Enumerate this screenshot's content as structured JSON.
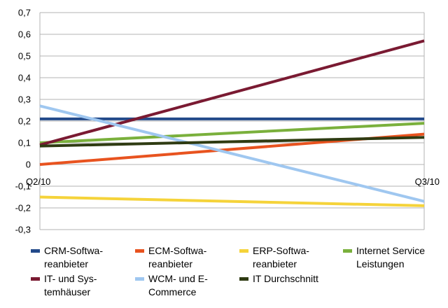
{
  "chart_data": {
    "type": "line",
    "categories": [
      "Q2/10",
      "Q3/10"
    ],
    "y_ticks": [
      "0,7",
      "0,6",
      "0,5",
      "0,4",
      "0,3",
      "0,2",
      "0,1",
      "0",
      "-0,1",
      "-0,2",
      "-0,3"
    ],
    "ylim": [
      -0.3,
      0.7
    ],
    "grid": true,
    "legend_position": "bottom",
    "series": [
      {
        "name_lines": [
          "CRM-Softwa-",
          "reanbieter"
        ],
        "color": "#234a8a",
        "values": [
          0.21,
          0.21
        ]
      },
      {
        "name_lines": [
          "ECM-Softwa-",
          "reanbieter"
        ],
        "color": "#e8531f",
        "values": [
          0.0,
          0.14
        ]
      },
      {
        "name_lines": [
          "ERP-Softwa-",
          "reanbieter"
        ],
        "color": "#f5d33a",
        "values": [
          -0.15,
          -0.19
        ]
      },
      {
        "name_lines": [
          "Internet Service",
          "Leistungen"
        ],
        "color": "#7ab03c",
        "values": [
          0.1,
          0.19
        ]
      },
      {
        "name_lines": [
          "IT- und Sys-",
          "temhäuser"
        ],
        "color": "#7a1a32",
        "values": [
          0.09,
          0.57
        ]
      },
      {
        "name_lines": [
          "WCM- und E-",
          "Commerce"
        ],
        "color": "#9fc7f0",
        "values": [
          0.27,
          -0.17
        ]
      },
      {
        "name_lines": [
          "IT Durchschnitt"
        ],
        "color": "#2f3b12",
        "values": [
          0.085,
          0.125
        ]
      }
    ]
  }
}
